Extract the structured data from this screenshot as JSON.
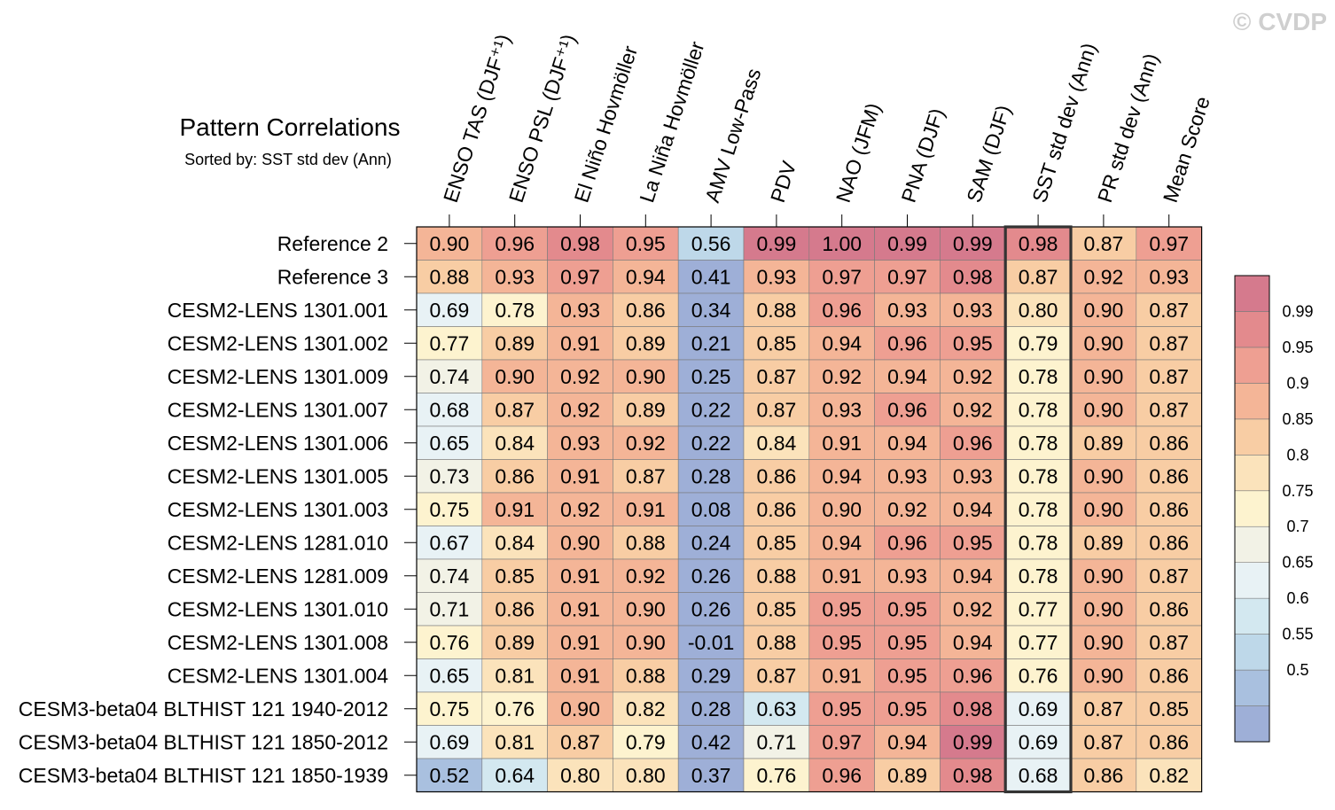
{
  "watermark": "© CVDP",
  "chart_data": {
    "type": "heatmap",
    "title": "Pattern Correlations",
    "subtitle": "Sorted by: SST std dev (Ann)",
    "highlighted_column": "SST std dev (Ann)",
    "columns": [
      "ENSO TAS (DJF⁺¹)",
      "ENSO PSL (DJF⁺¹)",
      "El Niño Hovmöller",
      "La Niña Hovmöller",
      "AMV Low-Pass",
      "PDV",
      "NAO (JFM)",
      "PNA (DJF)",
      "SAM (DJF)",
      "SST std dev (Ann)",
      "PR std dev (Ann)",
      "Mean Score"
    ],
    "rows": [
      "Reference 2",
      "Reference 3",
      "CESM2-LENS 1301.001",
      "CESM2-LENS 1301.002",
      "CESM2-LENS 1301.009",
      "CESM2-LENS 1301.007",
      "CESM2-LENS 1301.006",
      "CESM2-LENS 1301.005",
      "CESM2-LENS 1301.003",
      "CESM2-LENS 1281.010",
      "CESM2-LENS 1281.009",
      "CESM2-LENS 1301.010",
      "CESM2-LENS 1301.008",
      "CESM2-LENS 1301.004",
      "CESM3-beta04 BLTHIST 121 1940-2012",
      "CESM3-beta04 BLTHIST 121 1850-2012",
      "CESM3-beta04 BLTHIST 121 1850-1939"
    ],
    "values": [
      [
        "0.90",
        "0.96",
        "0.98",
        "0.95",
        "0.56",
        "0.99",
        "1.00",
        "0.99",
        "0.99",
        "0.98",
        "0.87",
        "0.97"
      ],
      [
        "0.88",
        "0.93",
        "0.97",
        "0.94",
        "0.41",
        "0.93",
        "0.97",
        "0.97",
        "0.98",
        "0.87",
        "0.92",
        "0.93"
      ],
      [
        "0.69",
        "0.78",
        "0.93",
        "0.86",
        "0.34",
        "0.88",
        "0.96",
        "0.93",
        "0.93",
        "0.80",
        "0.90",
        "0.87"
      ],
      [
        "0.77",
        "0.89",
        "0.91",
        "0.89",
        "0.21",
        "0.85",
        "0.94",
        "0.96",
        "0.95",
        "0.79",
        "0.90",
        "0.87"
      ],
      [
        "0.74",
        "0.90",
        "0.92",
        "0.90",
        "0.25",
        "0.87",
        "0.92",
        "0.94",
        "0.92",
        "0.78",
        "0.90",
        "0.87"
      ],
      [
        "0.68",
        "0.87",
        "0.92",
        "0.89",
        "0.22",
        "0.87",
        "0.93",
        "0.96",
        "0.92",
        "0.78",
        "0.90",
        "0.87"
      ],
      [
        "0.65",
        "0.84",
        "0.93",
        "0.92",
        "0.22",
        "0.84",
        "0.91",
        "0.94",
        "0.96",
        "0.78",
        "0.89",
        "0.86"
      ],
      [
        "0.73",
        "0.86",
        "0.91",
        "0.87",
        "0.28",
        "0.86",
        "0.94",
        "0.93",
        "0.93",
        "0.78",
        "0.90",
        "0.86"
      ],
      [
        "0.75",
        "0.91",
        "0.92",
        "0.91",
        "0.08",
        "0.86",
        "0.90",
        "0.92",
        "0.94",
        "0.78",
        "0.90",
        "0.86"
      ],
      [
        "0.67",
        "0.84",
        "0.90",
        "0.88",
        "0.24",
        "0.85",
        "0.94",
        "0.96",
        "0.95",
        "0.78",
        "0.89",
        "0.86"
      ],
      [
        "0.74",
        "0.85",
        "0.91",
        "0.92",
        "0.26",
        "0.88",
        "0.91",
        "0.93",
        "0.94",
        "0.78",
        "0.90",
        "0.87"
      ],
      [
        "0.71",
        "0.86",
        "0.91",
        "0.90",
        "0.26",
        "0.85",
        "0.95",
        "0.95",
        "0.92",
        "0.77",
        "0.90",
        "0.86"
      ],
      [
        "0.76",
        "0.89",
        "0.91",
        "0.90",
        "-0.01",
        "0.88",
        "0.95",
        "0.95",
        "0.94",
        "0.77",
        "0.90",
        "0.87"
      ],
      [
        "0.65",
        "0.81",
        "0.91",
        "0.88",
        "0.29",
        "0.87",
        "0.91",
        "0.95",
        "0.96",
        "0.76",
        "0.90",
        "0.86"
      ],
      [
        "0.75",
        "0.76",
        "0.90",
        "0.82",
        "0.28",
        "0.63",
        "0.95",
        "0.95",
        "0.98",
        "0.69",
        "0.87",
        "0.85"
      ],
      [
        "0.69",
        "0.81",
        "0.87",
        "0.79",
        "0.42",
        "0.71",
        "0.97",
        "0.94",
        "0.99",
        "0.69",
        "0.87",
        "0.86"
      ],
      [
        "0.52",
        "0.64",
        "0.80",
        "0.80",
        "0.37",
        "0.76",
        "0.96",
        "0.89",
        "0.98",
        "0.68",
        "0.86",
        "0.82"
      ]
    ],
    "colorbar": {
      "labels": [
        "0.99",
        "0.95",
        "0.9",
        "0.85",
        "0.8",
        "0.75",
        "0.7",
        "0.65",
        "0.6",
        "0.55",
        "0.5"
      ],
      "colors_low_to_high": [
        "#9eafd7",
        "#a9c0df",
        "#bed8e9",
        "#d3e8f0",
        "#e8f2f5",
        "#f2f2e6",
        "#fdf3cf",
        "#fbe3bb",
        "#f8cda4",
        "#f4b597",
        "#ee9f92",
        "#e38a8d",
        "#d57a8d"
      ]
    }
  }
}
